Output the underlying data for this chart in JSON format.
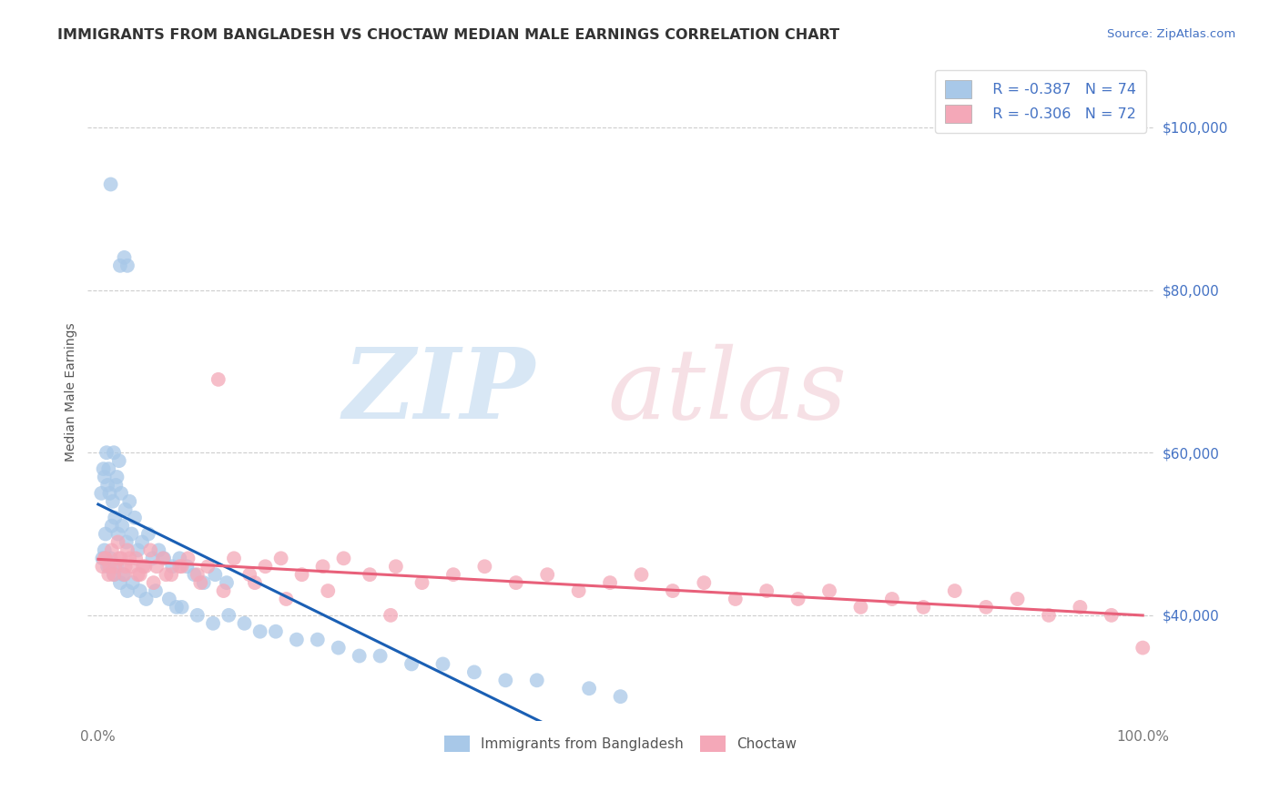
{
  "title": "IMMIGRANTS FROM BANGLADESH VS CHOCTAW MEDIAN MALE EARNINGS CORRELATION CHART",
  "source": "Source: ZipAtlas.com",
  "ylabel": "Median Male Earnings",
  "xlim": [
    -1,
    101
  ],
  "ylim": [
    27000,
    108000
  ],
  "yticks": [
    40000,
    60000,
    80000,
    100000
  ],
  "xtick_labels": [
    "0.0%",
    "100.0%"
  ],
  "legend_label1": "Immigrants from Bangladesh",
  "legend_label2": "Choctaw",
  "r1": -0.387,
  "n1": 74,
  "r2": -0.306,
  "n2": 72,
  "color1": "#a8c8e8",
  "color2": "#f4a8b8",
  "trendline1_color": "#1a5fb4",
  "trendline2_color": "#e8607a",
  "background_color": "#ffffff",
  "grid_color": "#c8c8c8",
  "bangladesh_x": [
    1.2,
    2.1,
    2.5,
    2.8,
    0.5,
    0.8,
    1.0,
    1.5,
    1.8,
    2.0,
    0.3,
    0.6,
    0.9,
    1.1,
    1.4,
    1.7,
    2.2,
    2.6,
    3.0,
    3.5,
    0.7,
    1.3,
    1.6,
    1.9,
    2.3,
    2.7,
    3.2,
    3.8,
    4.2,
    4.8,
    5.2,
    5.8,
    6.3,
    7.1,
    7.8,
    8.5,
    9.2,
    10.1,
    11.2,
    12.3,
    0.4,
    0.6,
    0.9,
    1.2,
    1.5,
    1.8,
    2.1,
    2.4,
    2.8,
    3.3,
    4.0,
    4.6,
    5.5,
    6.8,
    7.5,
    8.0,
    9.5,
    11.0,
    12.5,
    14.0,
    15.5,
    17.0,
    19.0,
    21.0,
    23.0,
    25.0,
    27.0,
    30.0,
    33.0,
    36.0,
    39.0,
    42.0,
    47.0,
    50.0
  ],
  "bangladesh_y": [
    93000,
    83000,
    84000,
    83000,
    58000,
    60000,
    58000,
    60000,
    57000,
    59000,
    55000,
    57000,
    56000,
    55000,
    54000,
    56000,
    55000,
    53000,
    54000,
    52000,
    50000,
    51000,
    52000,
    50000,
    51000,
    49000,
    50000,
    48000,
    49000,
    50000,
    47000,
    48000,
    47000,
    46000,
    47000,
    46000,
    45000,
    44000,
    45000,
    44000,
    47000,
    48000,
    46000,
    47000,
    45000,
    46000,
    44000,
    45000,
    43000,
    44000,
    43000,
    42000,
    43000,
    42000,
    41000,
    41000,
    40000,
    39000,
    40000,
    39000,
    38000,
    38000,
    37000,
    37000,
    36000,
    35000,
    35000,
    34000,
    34000,
    33000,
    32000,
    32000,
    31000,
    30000
  ],
  "choctaw_x": [
    0.4,
    0.7,
    1.0,
    1.3,
    1.6,
    1.9,
    2.2,
    2.5,
    2.8,
    3.2,
    3.6,
    4.0,
    4.5,
    5.0,
    5.6,
    6.2,
    7.0,
    7.8,
    8.6,
    9.5,
    10.5,
    11.5,
    13.0,
    14.5,
    16.0,
    17.5,
    19.5,
    21.5,
    23.5,
    26.0,
    28.5,
    31.0,
    34.0,
    37.0,
    40.0,
    43.0,
    46.0,
    49.0,
    52.0,
    55.0,
    58.0,
    61.0,
    64.0,
    67.0,
    70.0,
    73.0,
    76.0,
    79.0,
    82.0,
    85.0,
    88.0,
    91.0,
    94.0,
    97.0,
    100.0,
    0.6,
    1.1,
    1.5,
    2.0,
    2.6,
    3.0,
    3.8,
    4.3,
    5.3,
    6.5,
    8.0,
    9.8,
    12.0,
    15.0,
    18.0,
    22.0,
    28.0
  ],
  "choctaw_y": [
    46000,
    47000,
    45000,
    48000,
    46000,
    49000,
    47000,
    45000,
    48000,
    46000,
    47000,
    45000,
    46000,
    48000,
    46000,
    47000,
    45000,
    46000,
    47000,
    45000,
    46000,
    69000,
    47000,
    45000,
    46000,
    47000,
    45000,
    46000,
    47000,
    45000,
    46000,
    44000,
    45000,
    46000,
    44000,
    45000,
    43000,
    44000,
    45000,
    43000,
    44000,
    42000,
    43000,
    42000,
    43000,
    41000,
    42000,
    41000,
    43000,
    41000,
    42000,
    40000,
    41000,
    40000,
    36000,
    47000,
    46000,
    45000,
    47000,
    46000,
    47000,
    45000,
    46000,
    44000,
    45000,
    46000,
    44000,
    43000,
    44000,
    42000,
    43000,
    40000
  ]
}
